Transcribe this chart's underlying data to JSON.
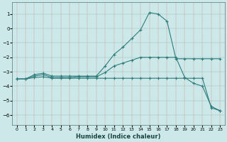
{
  "xlabel": "Humidex (Indice chaleur)",
  "bg_color": "#cce8e8",
  "grid_color": "#b0cccc",
  "line_color": "#2e7d7d",
  "xlim": [
    -0.5,
    23.5
  ],
  "ylim": [
    -6.7,
    1.8
  ],
  "xticks": [
    0,
    1,
    2,
    3,
    4,
    5,
    6,
    7,
    8,
    9,
    10,
    11,
    12,
    13,
    14,
    15,
    16,
    17,
    18,
    19,
    20,
    21,
    22,
    23
  ],
  "yticks": [
    -6,
    -5,
    -4,
    -3,
    -2,
    -1,
    0,
    1
  ],
  "series1_x": [
    0,
    1,
    2,
    3,
    4,
    5,
    6,
    7,
    8,
    9,
    10,
    11,
    12,
    13,
    14,
    15,
    16,
    17,
    18,
    19,
    20,
    21,
    22,
    23
  ],
  "series1_y": [
    -3.5,
    -3.5,
    -3.2,
    -3.1,
    -3.3,
    -3.3,
    -3.3,
    -3.3,
    -3.3,
    -3.3,
    -2.6,
    -1.8,
    -1.3,
    -0.7,
    -0.1,
    1.1,
    1.0,
    0.5,
    -2.1,
    -2.1,
    -2.1,
    -2.1,
    -2.1,
    -2.1
  ],
  "series2_x": [
    0,
    1,
    2,
    3,
    4,
    5,
    6,
    7,
    8,
    9,
    10,
    11,
    12,
    13,
    14,
    15,
    16,
    17,
    18,
    19,
    20,
    21,
    22,
    23
  ],
  "series2_y": [
    -3.5,
    -3.5,
    -3.3,
    -3.2,
    -3.4,
    -3.4,
    -3.4,
    -3.35,
    -3.35,
    -3.35,
    -3.05,
    -2.6,
    -2.4,
    -2.2,
    -2.0,
    -2.0,
    -2.0,
    -2.0,
    -2.0,
    -3.4,
    -3.8,
    -4.0,
    -5.4,
    -5.7
  ],
  "series3_x": [
    0,
    1,
    2,
    3,
    4,
    5,
    6,
    7,
    8,
    9,
    10,
    11,
    12,
    13,
    14,
    15,
    16,
    17,
    18,
    19,
    20,
    21,
    22,
    23
  ],
  "series3_y": [
    -3.5,
    -3.5,
    -3.4,
    -3.35,
    -3.45,
    -3.45,
    -3.45,
    -3.45,
    -3.45,
    -3.45,
    -3.45,
    -3.45,
    -3.45,
    -3.45,
    -3.45,
    -3.45,
    -3.45,
    -3.45,
    -3.45,
    -3.45,
    -3.45,
    -3.45,
    -5.5,
    -5.7
  ],
  "xlabel_fontsize": 6,
  "tick_fontsize": 4.5
}
